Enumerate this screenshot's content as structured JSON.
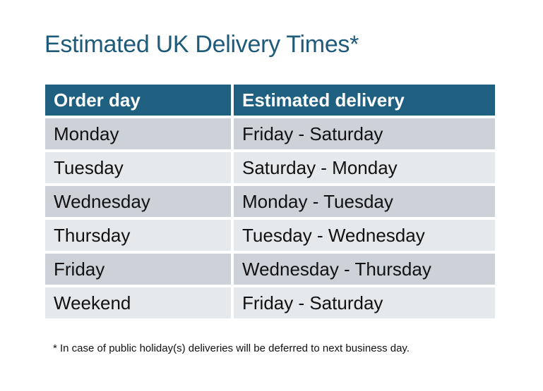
{
  "title": "Estimated UK Delivery Times*",
  "table": {
    "headers": [
      "Order day",
      "Estimated delivery"
    ],
    "rows": [
      [
        "Monday",
        "Friday - Saturday"
      ],
      [
        "Tuesday",
        "Saturday - Monday"
      ],
      [
        "Wednesday",
        "Monday - Tuesday"
      ],
      [
        "Thursday",
        "Tuesday - Wednesday"
      ],
      [
        "Friday",
        "Wednesday - Thursday"
      ],
      [
        "Weekend",
        "Friday - Saturday"
      ]
    ]
  },
  "footnote": "* In case of public holiday(s) deliveries will be deferred to next business day.",
  "colors": {
    "header": "#1f5f80",
    "title": "#1e5a7a",
    "row_dark": "#cdd1d8",
    "row_light": "#e6e9ec"
  }
}
